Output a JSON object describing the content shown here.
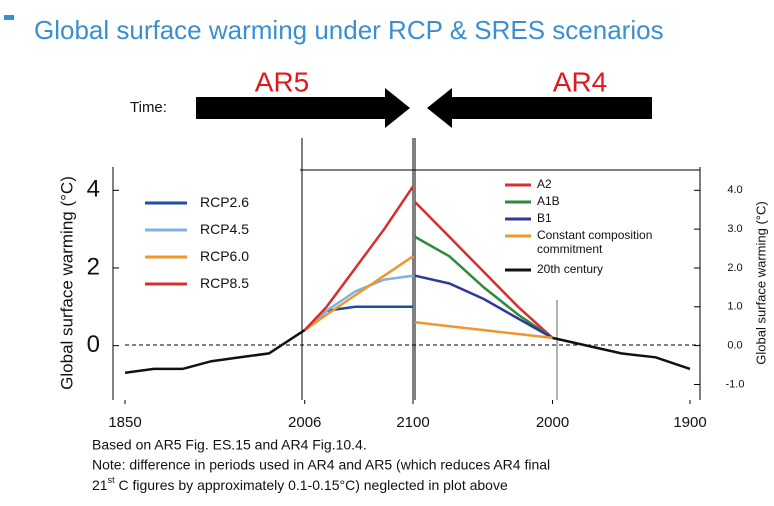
{
  "title": "Global surface warming under RCP & SRES scenarios",
  "ar5_label": "AR5",
  "ar4_label": "AR4",
  "time_label": "Time:",
  "notes": [
    "Based on AR5 Fig. ES.15 and AR4 Fig.10.4.",
    "Note: difference in periods used in AR4 and AR5 (which reduces AR4 final",
    "21",
    "st",
    " C figures by approximately 0.1-0.15°C) neglected in plot above"
  ],
  "chart_data": [
    {
      "type": "line",
      "ylabel": "Global surface warming (°C)",
      "yaxis_side": "left",
      "x": [
        1850,
        1875,
        1900,
        1925,
        1950,
        1975,
        2006,
        2025,
        2050,
        2075,
        2100
      ],
      "xlim": [
        1850,
        2100
      ],
      "xticks": [
        1850,
        2006,
        2100
      ],
      "ylim": [
        -1.4,
        4.6
      ],
      "yticks": [
        0,
        2,
        4
      ],
      "series": [
        {
          "color": "#111111",
          "values": [
            -0.7,
            -0.6,
            -0.6,
            -0.4,
            -0.3,
            -0.2,
            0.4,
            null,
            null,
            null,
            null
          ]
        },
        {
          "name": "RCP2.6",
          "color": "#1f4e9c",
          "values": [
            null,
            null,
            null,
            null,
            null,
            null,
            0.4,
            0.9,
            1.0,
            1.0,
            1.0
          ]
        },
        {
          "name": "RCP4.5",
          "color": "#7fb2e0",
          "values": [
            null,
            null,
            null,
            null,
            null,
            null,
            0.4,
            0.9,
            1.4,
            1.7,
            1.8
          ]
        },
        {
          "name": "RCP6.0",
          "color": "#f0962a",
          "values": [
            null,
            null,
            null,
            null,
            null,
            null,
            0.4,
            0.8,
            1.3,
            1.8,
            2.3
          ]
        },
        {
          "name": "RCP8.5",
          "color": "#d62f2f",
          "values": [
            null,
            null,
            null,
            null,
            null,
            null,
            0.4,
            1.0,
            2.0,
            3.0,
            4.1
          ]
        }
      ]
    },
    {
      "type": "line",
      "ylabel": "Global surface warming (°C)",
      "yaxis_side": "right",
      "x": [
        2100,
        2075,
        2050,
        2025,
        2000,
        1975,
        1950,
        1925,
        1900
      ],
      "xlim": [
        2100,
        1900
      ],
      "xticks": [
        2000,
        1900
      ],
      "ylim": [
        -1.4,
        4.6
      ],
      "yticks": [
        {
          "value": -1,
          "label": "-1.0"
        },
        {
          "value": 0,
          "label": "0.0"
        },
        {
          "value": 1,
          "label": "1.0"
        },
        {
          "value": 2,
          "label": "2.0"
        },
        {
          "value": 3,
          "label": "3.0"
        },
        {
          "value": 4,
          "label": "4.0"
        }
      ],
      "series": [
        {
          "name": "A2",
          "color": "#d62f2f",
          "values": [
            3.7,
            2.8,
            1.9,
            1.0,
            0.2,
            null,
            null,
            null,
            null
          ]
        },
        {
          "name": "A1B",
          "color": "#2e8b3a",
          "values": [
            2.8,
            2.3,
            1.5,
            0.8,
            0.2,
            null,
            null,
            null,
            null
          ]
        },
        {
          "name": "B1",
          "color": "#2b3a9c",
          "values": [
            1.8,
            1.6,
            1.2,
            0.7,
            0.2,
            null,
            null,
            null,
            null
          ]
        },
        {
          "name": "Constant composition commitment",
          "color": "#f0962a",
          "values": [
            0.6,
            0.5,
            0.4,
            0.3,
            0.2,
            null,
            null,
            null,
            null
          ]
        },
        {
          "name": "20th century",
          "color": "#111111",
          "values": [
            null,
            null,
            null,
            null,
            0.2,
            0.0,
            -0.2,
            -0.3,
            -0.6
          ]
        }
      ]
    }
  ]
}
